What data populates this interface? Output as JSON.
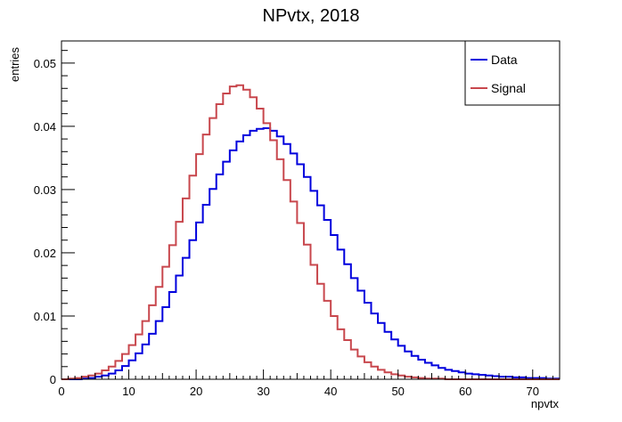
{
  "chart_data": {
    "type": "line",
    "title": "NPvtx, 2018",
    "xlabel": "npvtx",
    "ylabel": "entries",
    "xlim": [
      0,
      74
    ],
    "ylim": [
      0,
      0.0535
    ],
    "x_ticks": [
      0,
      10,
      20,
      30,
      40,
      50,
      60,
      70
    ],
    "x_tick_labels": [
      "0",
      "10",
      "20",
      "30",
      "40",
      "50",
      "60",
      "70"
    ],
    "y_ticks": [
      0,
      0.01,
      0.02,
      0.03,
      0.04,
      0.05
    ],
    "y_tick_labels": [
      "0",
      "0.01",
      "0.02",
      "0.03",
      "0.04",
      "0.05"
    ],
    "grid": false,
    "legend_position": "top-right",
    "bin_width": 1,
    "bin_start": 0,
    "series": [
      {
        "name": "Data",
        "color": "#0000dd",
        "values": [
          0.0,
          0.0,
          0.0,
          0.0001,
          0.0002,
          0.0004,
          0.0006,
          0.0009,
          0.0014,
          0.0021,
          0.003,
          0.0041,
          0.0055,
          0.0072,
          0.0092,
          0.0114,
          0.0138,
          0.0164,
          0.0192,
          0.022,
          0.0248,
          0.0276,
          0.0301,
          0.0324,
          0.0344,
          0.0362,
          0.0376,
          0.0386,
          0.0393,
          0.0396,
          0.0397,
          0.0393,
          0.0384,
          0.0372,
          0.0357,
          0.034,
          0.032,
          0.0298,
          0.0275,
          0.0252,
          0.0228,
          0.0205,
          0.0182,
          0.016,
          0.014,
          0.0121,
          0.0104,
          0.0089,
          0.0075,
          0.0063,
          0.0053,
          0.0044,
          0.0037,
          0.0031,
          0.0026,
          0.0022,
          0.0018,
          0.0015,
          0.0013,
          0.0011,
          0.0009,
          0.0008,
          0.0007,
          0.0006,
          0.0005,
          0.0004,
          0.0004,
          0.0003,
          0.0003,
          0.0002,
          0.0002,
          0.0002,
          0.0001,
          0.0001
        ]
      },
      {
        "name": "Signal",
        "color": "#c8474d",
        "values": [
          0.0,
          0.0001,
          0.0002,
          0.0004,
          0.0006,
          0.0009,
          0.0014,
          0.002,
          0.0029,
          0.004,
          0.0054,
          0.0071,
          0.0092,
          0.0117,
          0.0146,
          0.0178,
          0.0212,
          0.0249,
          0.0286,
          0.0322,
          0.0356,
          0.0387,
          0.0413,
          0.0435,
          0.0452,
          0.0463,
          0.0465,
          0.0458,
          0.0446,
          0.0428,
          0.0405,
          0.0378,
          0.0348,
          0.0315,
          0.0281,
          0.0247,
          0.0213,
          0.0181,
          0.0151,
          0.0124,
          0.01,
          0.0079,
          0.0062,
          0.0047,
          0.0036,
          0.0027,
          0.002,
          0.0015,
          0.0011,
          0.0008,
          0.0006,
          0.0004,
          0.0003,
          0.0002,
          0.0001,
          0.0001,
          0.0001,
          0.0,
          0.0,
          0.0,
          0.0,
          0.0,
          0.0,
          0.0,
          0.0,
          0.0,
          0.0,
          0.0,
          0.0,
          0.0,
          0.0,
          0.0,
          0.0,
          0.0
        ]
      }
    ]
  }
}
